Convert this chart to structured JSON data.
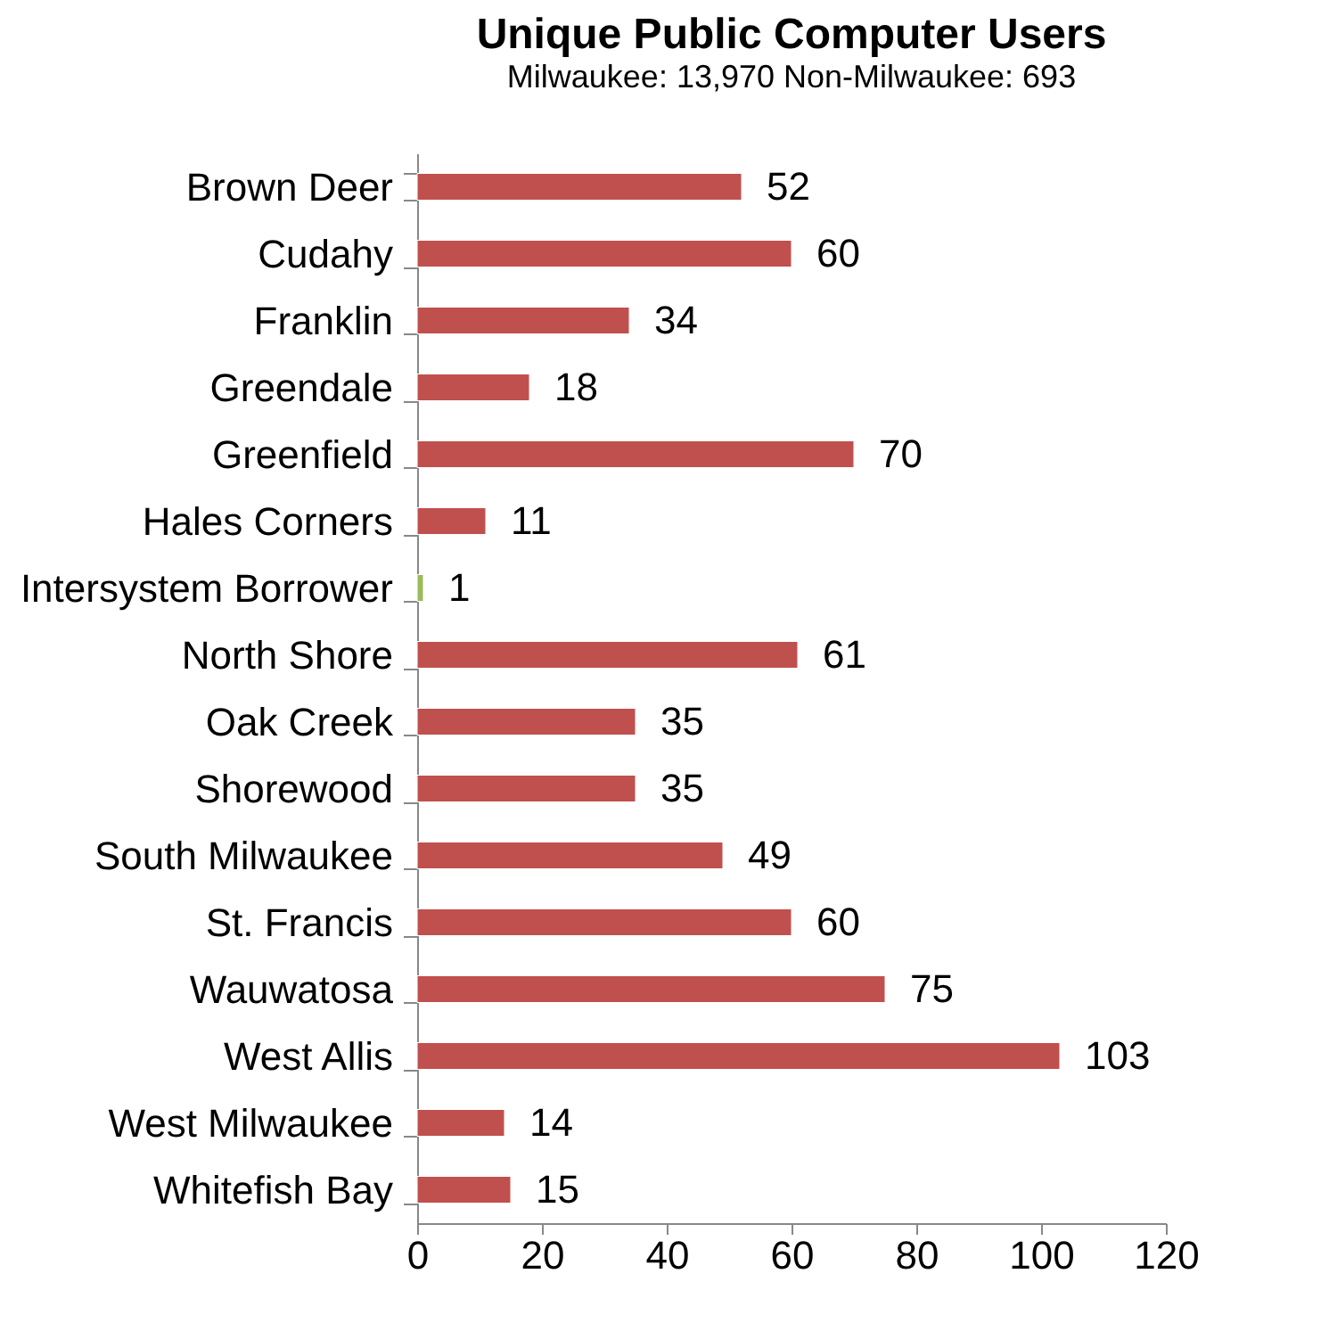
{
  "chart_data": {
    "type": "bar",
    "orientation": "horizontal",
    "title": "Unique Public Computer Users",
    "subtitle": "Milwaukee: 13,970  Non-Milwaukee: 693",
    "categories": [
      "Brown Deer",
      "Cudahy",
      "Franklin",
      "Greendale",
      "Greenfield",
      "Hales Corners",
      "Intersystem Borrower",
      "North Shore",
      "Oak Creek",
      "Shorewood",
      "South Milwaukee",
      "St. Francis",
      "Wauwatosa",
      "West Allis",
      "West Milwaukee",
      "Whitefish Bay"
    ],
    "values": [
      52,
      60,
      34,
      18,
      70,
      11,
      1,
      61,
      35,
      35,
      49,
      60,
      75,
      103,
      14,
      15
    ],
    "colors": [
      "#c0504d",
      "#c0504d",
      "#c0504d",
      "#c0504d",
      "#c0504d",
      "#c0504d",
      "#9bbb59",
      "#c0504d",
      "#c0504d",
      "#c0504d",
      "#c0504d",
      "#c0504d",
      "#c0504d",
      "#c0504d",
      "#c0504d",
      "#c0504d"
    ],
    "xlim": [
      0,
      120
    ],
    "xticks": [
      0,
      20,
      40,
      60,
      80,
      100,
      120
    ],
    "data_labels": true,
    "grid": false
  }
}
